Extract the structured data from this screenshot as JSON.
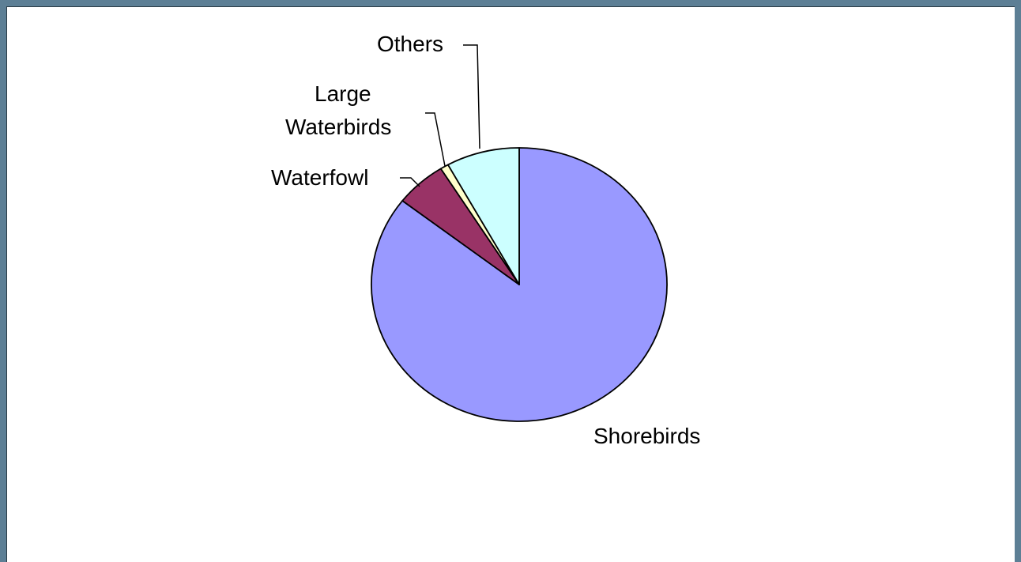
{
  "chart_data": {
    "type": "pie",
    "categories": [
      "Shorebirds",
      "Waterfowl",
      "Large Waterbirds",
      "Others"
    ],
    "values": [
      85.5,
      5.6,
      0.9,
      8.0
    ],
    "colors": [
      "#9999ff",
      "#993366",
      "#ffffcc",
      "#ccffff"
    ],
    "labels": {
      "shorebirds": "Shorebirds",
      "waterfowl": "Waterfowl",
      "large_waterbirds_line1": "Large",
      "large_waterbirds_line2": "Waterbirds",
      "others": "Others"
    },
    "start_angle": "12 o'clock",
    "direction": "clockwise",
    "legend": "none"
  }
}
